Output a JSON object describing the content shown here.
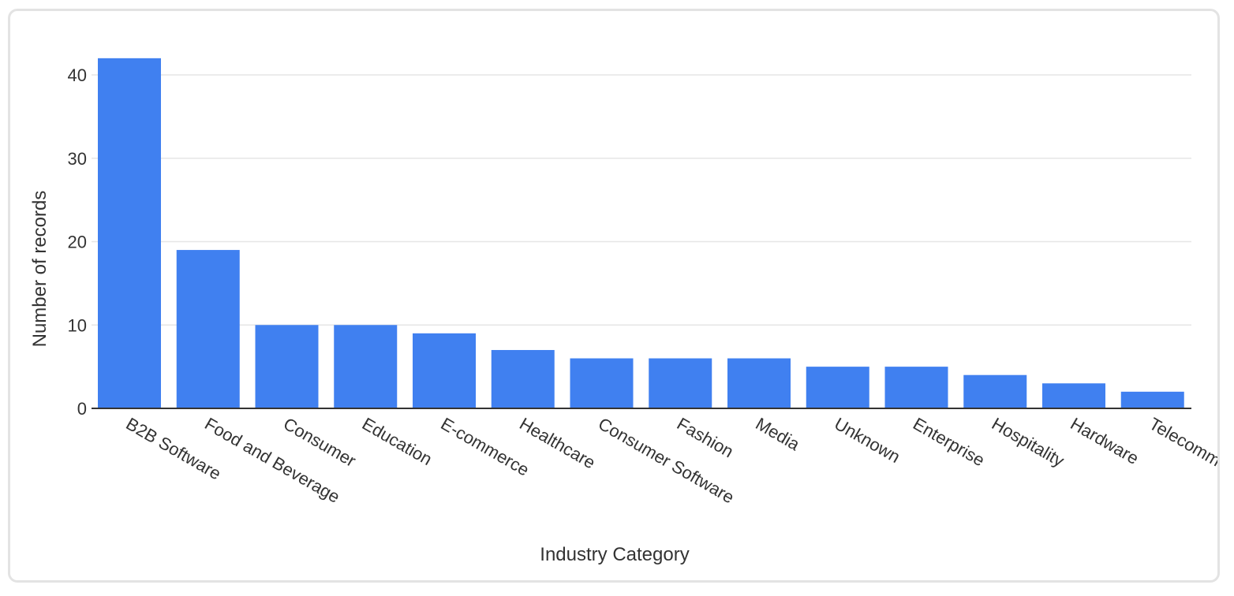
{
  "colors": {
    "bar": "#4080f0",
    "grid": "#e6e6e6",
    "axis": "#333333",
    "text": "#333333",
    "card_border": "#e3e3e3"
  },
  "chart_data": {
    "type": "bar",
    "xlabel": "Industry Category",
    "ylabel": "Number of records",
    "ylim": [
      0,
      44
    ],
    "yticks": [
      0,
      10,
      20,
      30,
      40
    ],
    "grid": true,
    "legend": "none",
    "categories": [
      "B2B Software",
      "Food and Beverage",
      "Consumer",
      "Education",
      "E-commerce",
      "Healthcare",
      "Consumer Software",
      "Fashion",
      "Media",
      "Unknown",
      "Enterprise",
      "Hospitality",
      "Hardware",
      "Telecommunications"
    ],
    "values": [
      42,
      19,
      10,
      10,
      9,
      7,
      6,
      6,
      6,
      5,
      5,
      4,
      3,
      2
    ]
  }
}
